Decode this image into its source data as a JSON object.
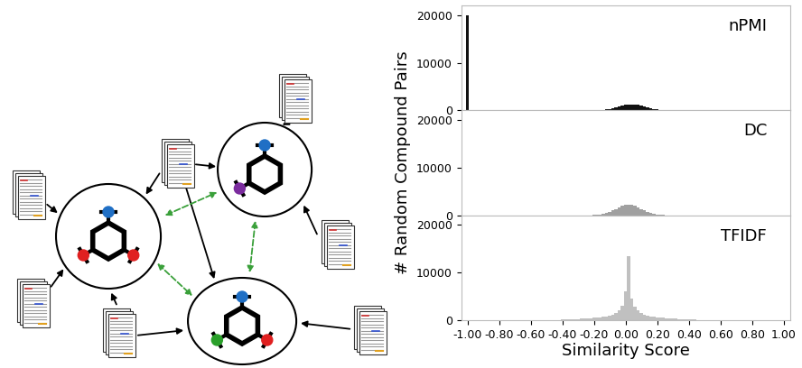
{
  "chart_data": [
    {
      "type": "histogram",
      "title": "nPMI",
      "color": "#111111",
      "bins": [
        -1.01,
        -0.99,
        -0.97,
        -0.95,
        -0.93,
        -0.91,
        -0.89,
        -0.87,
        -0.85,
        -0.83,
        -0.81,
        -0.79,
        -0.77,
        -0.75,
        -0.73,
        -0.71,
        -0.69,
        -0.67,
        -0.65,
        -0.63,
        -0.61,
        -0.59,
        -0.57,
        -0.55,
        -0.53,
        -0.51,
        -0.49,
        -0.47,
        -0.45,
        -0.43,
        -0.41,
        -0.39,
        -0.37,
        -0.35,
        -0.33,
        -0.31,
        -0.29,
        -0.27,
        -0.25,
        -0.23,
        -0.21,
        -0.19,
        -0.17,
        -0.15,
        -0.13,
        -0.11,
        -0.09,
        -0.07,
        -0.05,
        -0.03,
        -0.01,
        0.01,
        0.03,
        0.05,
        0.07,
        0.09,
        0.11,
        0.13,
        0.15,
        0.17,
        0.19,
        0.21,
        0.23,
        0.25,
        0.27,
        0.29,
        0.31,
        0.33,
        0.35,
        0.37,
        0.39,
        0.41,
        0.43,
        0.45,
        0.47,
        0.49,
        0.51,
        0.53,
        0.55,
        0.57,
        0.59,
        0.61,
        0.63,
        0.65,
        0.67,
        0.69,
        0.71,
        0.73,
        0.75,
        0.77,
        0.79,
        0.81,
        0.83,
        0.85,
        0.87,
        0.89,
        0.91,
        0.93,
        0.95,
        0.97,
        0.99,
        1.01
      ],
      "counts": [
        20000,
        0,
        0,
        0,
        0,
        0,
        0,
        0,
        0,
        0,
        0,
        0,
        0,
        0,
        0,
        0,
        0,
        0,
        0,
        0,
        0,
        0,
        0,
        0,
        0,
        0,
        0,
        0,
        0,
        0,
        0,
        0,
        0,
        0,
        0,
        0,
        0,
        0,
        0,
        7,
        15,
        30,
        57,
        103,
        175,
        280,
        420,
        595,
        790,
        985,
        1150,
        1260,
        1300,
        1260,
        1150,
        985,
        790,
        595,
        420,
        280,
        175,
        103,
        57,
        30,
        15,
        7,
        0,
        0,
        0,
        0,
        0,
        0,
        0,
        0,
        0,
        0,
        0,
        0,
        0,
        0,
        0,
        0,
        0,
        0,
        0,
        0,
        150,
        0,
        100,
        0,
        0,
        0,
        0,
        0,
        0,
        0,
        0,
        0,
        0,
        0,
        80
      ],
      "xlim": [
        -1.04,
        1.04
      ],
      "ylim": [
        0,
        22000
      ],
      "yticks": [
        0,
        10000,
        20000
      ],
      "tick_labels": "y"
    },
    {
      "type": "histogram",
      "title": "DC",
      "color": "#a0a0a0",
      "ylabel": "# Random Compound Pairs",
      "bins": [
        -1.01,
        -0.99,
        -0.97,
        -0.95,
        -0.93,
        -0.91,
        -0.89,
        -0.87,
        -0.85,
        -0.83,
        -0.81,
        -0.79,
        -0.77,
        -0.75,
        -0.73,
        -0.71,
        -0.69,
        -0.67,
        -0.65,
        -0.63,
        -0.61,
        -0.59,
        -0.57,
        -0.55,
        -0.53,
        -0.51,
        -0.49,
        -0.47,
        -0.45,
        -0.43,
        -0.41,
        -0.39,
        -0.37,
        -0.35,
        -0.33,
        -0.31,
        -0.29,
        -0.27,
        -0.25,
        -0.23,
        -0.21,
        -0.19,
        -0.17,
        -0.15,
        -0.13,
        -0.11,
        -0.09,
        -0.07,
        -0.05,
        -0.03,
        -0.01,
        0.01,
        0.03,
        0.05,
        0.07,
        0.09,
        0.11,
        0.13,
        0.15,
        0.17,
        0.19,
        0.21,
        0.23,
        0.25,
        0.27,
        0.29,
        0.31,
        0.33,
        0.35,
        0.37,
        0.39,
        0.41,
        0.43,
        0.45,
        0.47,
        0.49,
        0.51,
        0.53,
        0.55,
        0.57,
        0.59,
        0.61,
        0.63,
        0.65,
        0.67,
        0.69,
        0.71,
        0.73,
        0.75,
        0.77,
        0.79,
        0.81,
        0.83,
        0.85,
        0.87,
        0.89,
        0.91,
        0.93,
        0.95,
        0.97,
        0.99,
        1.01
      ],
      "counts": [
        0,
        0,
        0,
        0,
        0,
        0,
        0,
        0,
        0,
        0,
        0,
        0,
        0,
        0,
        0,
        0,
        0,
        0,
        0,
        0,
        0,
        0,
        0,
        0,
        0,
        0,
        0,
        0,
        0,
        0,
        0,
        0,
        0,
        0,
        0,
        0,
        0,
        5,
        12,
        25,
        50,
        100,
        180,
        300,
        480,
        720,
        1010,
        1335,
        1670,
        1940,
        2130,
        2200,
        2130,
        1940,
        1670,
        1335,
        1010,
        720,
        480,
        300,
        180,
        100,
        50,
        25,
        12,
        5,
        0,
        0,
        0,
        0,
        0,
        0,
        0,
        0,
        0,
        0,
        0,
        0,
        0,
        0,
        0,
        0,
        0,
        0,
        0,
        0,
        0,
        0,
        0,
        0,
        0,
        0,
        0,
        0,
        0,
        0,
        0,
        0,
        0,
        0,
        0
      ],
      "xlim": [
        -1.04,
        1.04
      ],
      "ylim": [
        0,
        22000
      ],
      "yticks": [
        0,
        10000,
        20000
      ],
      "tick_labels": "y"
    },
    {
      "type": "histogram",
      "title": "TFIDF",
      "color": "#c0c0c0",
      "xlabel": "Similarity Score",
      "bins": [
        -1.01,
        -0.99,
        -0.97,
        -0.95,
        -0.93,
        -0.91,
        -0.89,
        -0.87,
        -0.85,
        -0.83,
        -0.81,
        -0.79,
        -0.77,
        -0.75,
        -0.73,
        -0.71,
        -0.69,
        -0.67,
        -0.65,
        -0.63,
        -0.61,
        -0.59,
        -0.57,
        -0.55,
        -0.53,
        -0.51,
        -0.49,
        -0.47,
        -0.45,
        -0.43,
        -0.41,
        -0.39,
        -0.37,
        -0.35,
        -0.33,
        -0.31,
        -0.29,
        -0.27,
        -0.25,
        -0.23,
        -0.21,
        -0.19,
        -0.17,
        -0.15,
        -0.13,
        -0.11,
        -0.09,
        -0.07,
        -0.05,
        -0.03,
        -0.01,
        0.01,
        0.03,
        0.05,
        0.07,
        0.09,
        0.11,
        0.13,
        0.15,
        0.17,
        0.19,
        0.21,
        0.23,
        0.25,
        0.27,
        0.29,
        0.31,
        0.33,
        0.35,
        0.37,
        0.39,
        0.41,
        0.43,
        0.45,
        0.47,
        0.49,
        0.51,
        0.53,
        0.55,
        0.57,
        0.59,
        0.61,
        0.63,
        0.65,
        0.67,
        0.69,
        0.71,
        0.73,
        0.75,
        0.77,
        0.79,
        0.81,
        0.83,
        0.85,
        0.87,
        0.89,
        0.91,
        0.93,
        0.95,
        0.97,
        0.99,
        1.01
      ],
      "counts": [
        0,
        0,
        0,
        0,
        0,
        0,
        0,
        0,
        0,
        0,
        0,
        0,
        0,
        0,
        0,
        0,
        0,
        0,
        0,
        0,
        0,
        0,
        0,
        0,
        0,
        20,
        30,
        40,
        60,
        80,
        100,
        120,
        150,
        180,
        220,
        260,
        300,
        350,
        400,
        450,
        500,
        550,
        600,
        700,
        800,
        1000,
        1200,
        1500,
        2000,
        3000,
        6000,
        13500,
        4500,
        2800,
        2000,
        1500,
        1200,
        1000,
        800,
        700,
        600,
        550,
        500,
        450,
        400,
        350,
        300,
        260,
        220,
        180,
        150,
        120,
        100,
        80,
        60,
        40,
        30,
        20,
        0,
        0,
        0,
        0,
        0,
        0,
        0,
        0,
        0,
        0,
        0,
        0,
        0,
        0,
        0,
        0,
        0,
        0,
        0,
        0,
        0,
        0,
        0
      ],
      "xlim": [
        -1.04,
        1.04
      ],
      "ylim": [
        0,
        22000
      ],
      "yticks": [
        0,
        10000,
        20000
      ],
      "xticks": [
        {
          "value": -1.0,
          "label": "-1.00"
        },
        {
          "value": -0.8,
          "label": "-0.80"
        },
        {
          "value": -0.6,
          "label": "-0.60"
        },
        {
          "value": -0.4,
          "label": "-0.40"
        },
        {
          "value": -0.2,
          "label": "-0.20"
        },
        {
          "value": 0.0,
          "label": "0.00"
        },
        {
          "value": 0.2,
          "label": "0.20"
        },
        {
          "value": 0.4,
          "label": "0.40"
        },
        {
          "value": 0.6,
          "label": "0.60"
        },
        {
          "value": 0.8,
          "label": "0.80"
        },
        {
          "value": 1.0,
          "label": "1.00"
        }
      ]
    }
  ]
}
